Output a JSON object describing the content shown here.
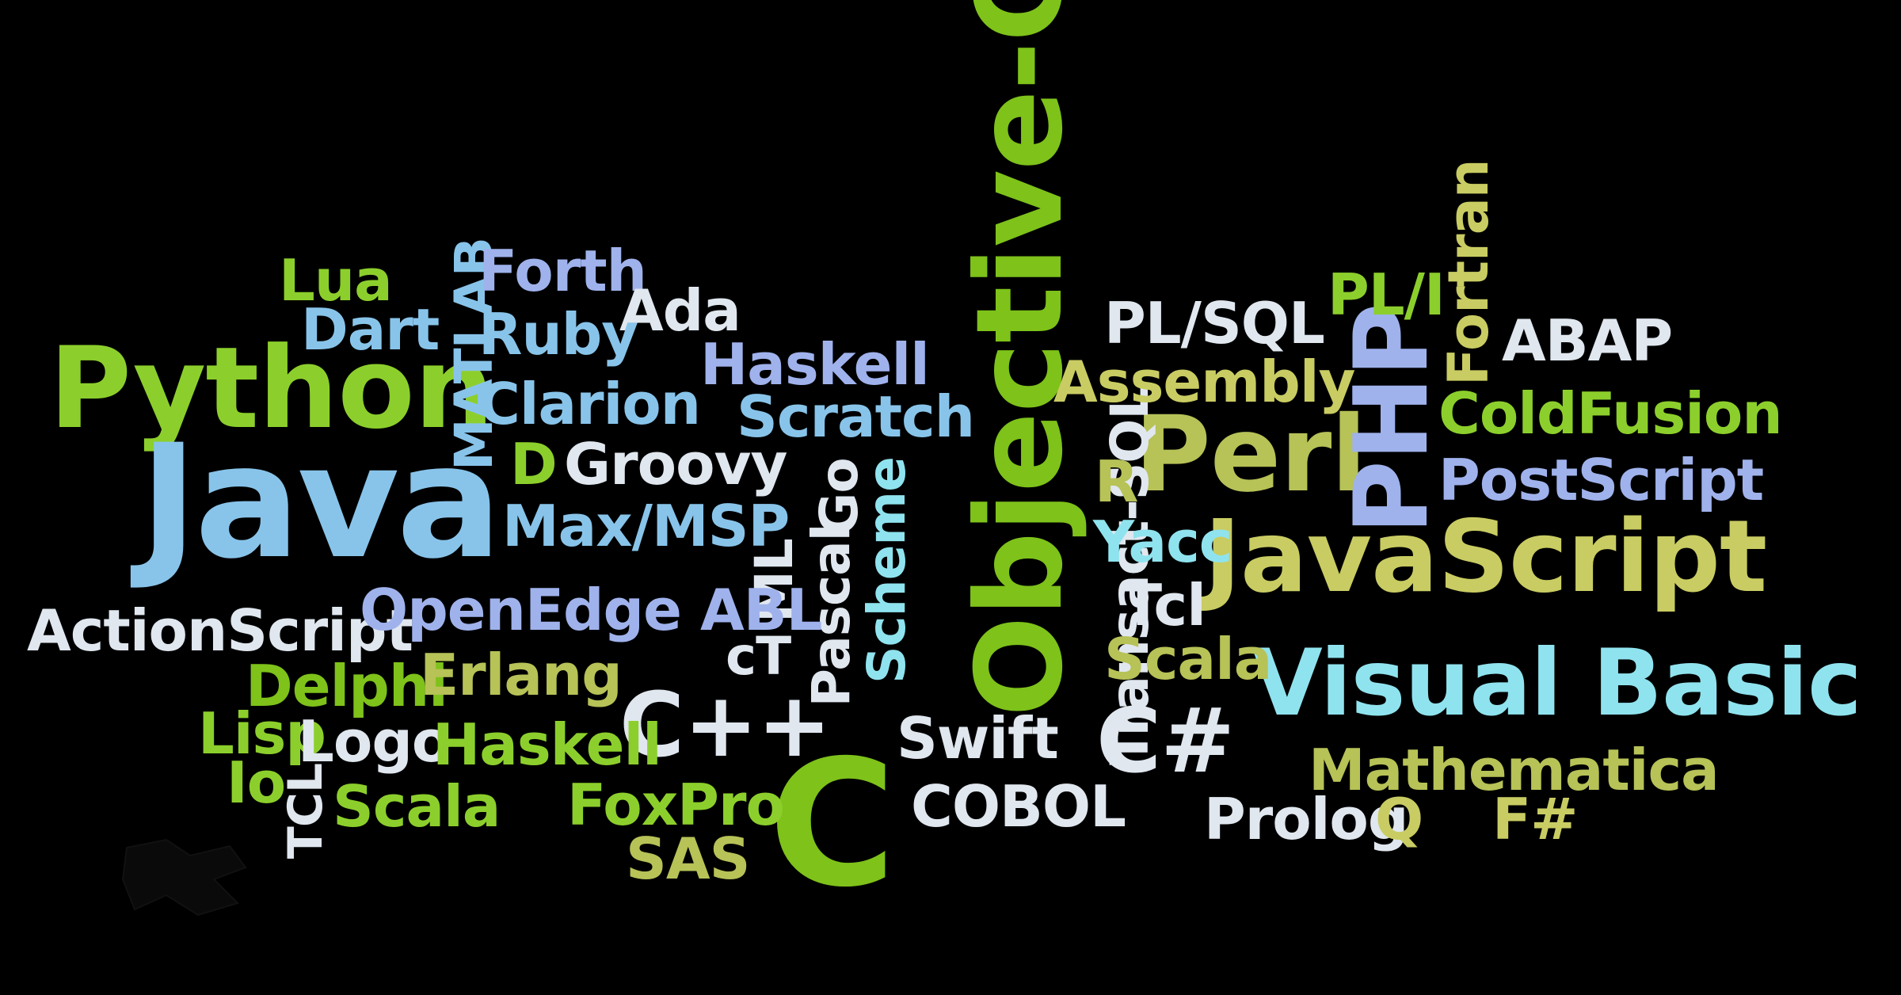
{
  "words": {
    "objective_c": "Objective-C",
    "python": "Python",
    "java": "Java",
    "perl": "Perl",
    "php": "PHP",
    "javascript": "JavaScript",
    "visual_basic": "Visual Basic",
    "c": "C",
    "cpp": "C++",
    "csharp": "C#",
    "lua": "Lua",
    "matlab": "MATLAB",
    "forth": "Forth",
    "ada": "Ada",
    "dart": "Dart",
    "ruby": "Ruby",
    "haskell_top": "Haskell",
    "clarion": "Clarion",
    "scratch": "Scratch",
    "d": "D",
    "groovy": "Groovy",
    "max_msp": "Max/MSP",
    "go": "Go",
    "pascal": "Pascal",
    "ml": "ML",
    "ct": "cT",
    "scheme": "Scheme",
    "actionscript": "ActionScript",
    "openedge_abl": "OpenEdge ABL",
    "delphi": "Delphi",
    "erlang": "Erlang",
    "lisp": "Lisp",
    "logo": "Logo",
    "haskell_bottom": "Haskell",
    "io": "Io",
    "tcl_upper": "TCL",
    "scala_left": "Scala",
    "foxpro": "FoxPro",
    "sas": "SAS",
    "swift": "Swift",
    "cobol": "COBOL",
    "transact_sql": "Transact-SQL",
    "r": "R",
    "yacc": "Yacc",
    "tcl": "Tcl",
    "scala_right": "Scala",
    "pl_sql": "PL/SQL",
    "assembly": "Assembly",
    "pl_i": "PL/I",
    "fortran": "Fortran",
    "abap": "ABAP",
    "coldfusion": "ColdFusion",
    "postscript": "PostScript",
    "mathematica": "Mathematica",
    "prolog": "Prolog",
    "q": "Q",
    "fsharp": "F#"
  }
}
